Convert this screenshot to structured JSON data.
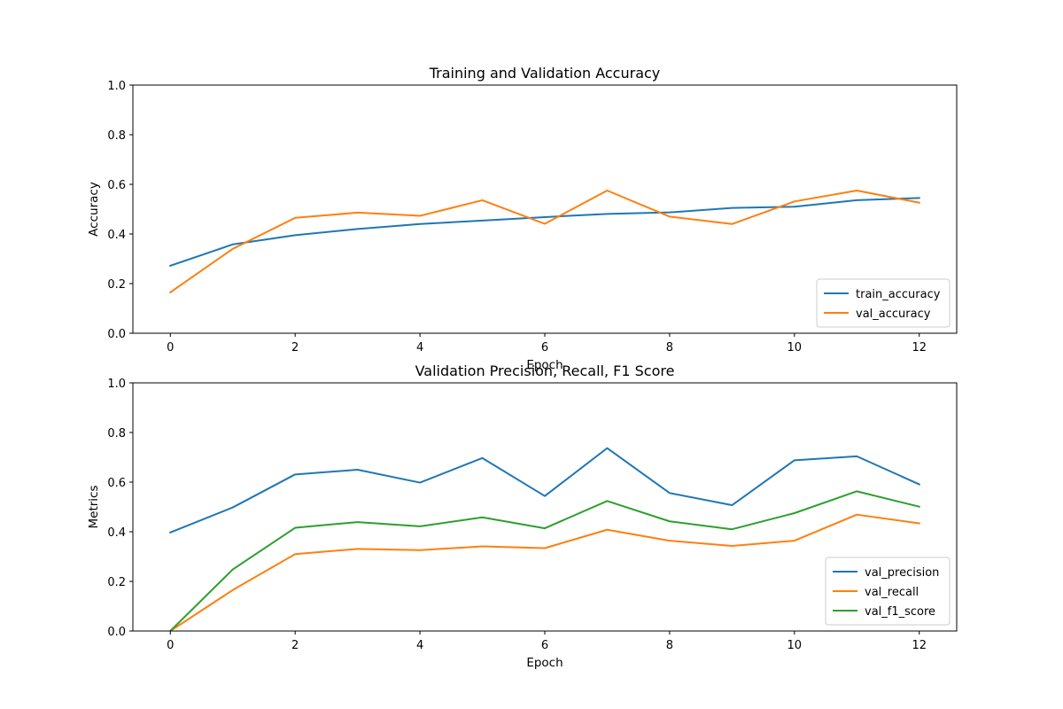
{
  "chart_data": [
    {
      "type": "line",
      "title": "Training and Validation Accuracy",
      "xlabel": "Epoch",
      "ylabel": "Accuracy",
      "xlim": [
        -0.6,
        12.6
      ],
      "ylim": [
        0,
        1
      ],
      "xticks": [
        0,
        2,
        4,
        6,
        8,
        10,
        12
      ],
      "yticks": [
        0.0,
        0.2,
        0.4,
        0.6,
        0.8,
        1.0
      ],
      "ytick_labels": [
        "0.0",
        "0.2",
        "0.4",
        "0.6",
        "0.8",
        "1.0"
      ],
      "grid": false,
      "legend_position": "lower-right",
      "x": [
        0,
        1,
        2,
        3,
        4,
        5,
        6,
        7,
        8,
        9,
        10,
        11,
        12
      ],
      "series": [
        {
          "name": "train_accuracy",
          "color": "#1f77b4",
          "values": [
            0.272,
            0.358,
            0.395,
            0.42,
            0.44,
            0.454,
            0.468,
            0.481,
            0.487,
            0.505,
            0.51,
            0.536,
            0.545
          ]
        },
        {
          "name": "val_accuracy",
          "color": "#ff7f0e",
          "values": [
            0.165,
            0.34,
            0.465,
            0.486,
            0.473,
            0.536,
            0.441,
            0.575,
            0.47,
            0.44,
            0.531,
            0.575,
            0.526
          ]
        }
      ]
    },
    {
      "type": "line",
      "title": "Validation Precision, Recall, F1 Score",
      "xlabel": "Epoch",
      "ylabel": "Metrics",
      "xlim": [
        -0.6,
        12.6
      ],
      "ylim": [
        0,
        1
      ],
      "xticks": [
        0,
        2,
        4,
        6,
        8,
        10,
        12
      ],
      "yticks": [
        0.0,
        0.2,
        0.4,
        0.6,
        0.8,
        1.0
      ],
      "ytick_labels": [
        "0.0",
        "0.2",
        "0.4",
        "0.6",
        "0.8",
        "1.0"
      ],
      "grid": false,
      "legend_position": "lower-right",
      "x": [
        0,
        1,
        2,
        3,
        4,
        5,
        6,
        7,
        8,
        9,
        10,
        11,
        12
      ],
      "series": [
        {
          "name": "val_precision",
          "color": "#1f77b4",
          "values": [
            0.397,
            0.498,
            0.631,
            0.65,
            0.598,
            0.697,
            0.544,
            0.737,
            0.556,
            0.507,
            0.688,
            0.704,
            0.591
          ]
        },
        {
          "name": "val_recall",
          "color": "#ff7f0e",
          "values": [
            0.0,
            0.165,
            0.31,
            0.331,
            0.326,
            0.341,
            0.334,
            0.408,
            0.364,
            0.343,
            0.364,
            0.469,
            0.434
          ]
        },
        {
          "name": "val_f1_score",
          "color": "#2ca02c",
          "values": [
            0.0,
            0.248,
            0.416,
            0.439,
            0.422,
            0.458,
            0.414,
            0.524,
            0.442,
            0.41,
            0.475,
            0.563,
            0.501
          ]
        }
      ]
    }
  ]
}
